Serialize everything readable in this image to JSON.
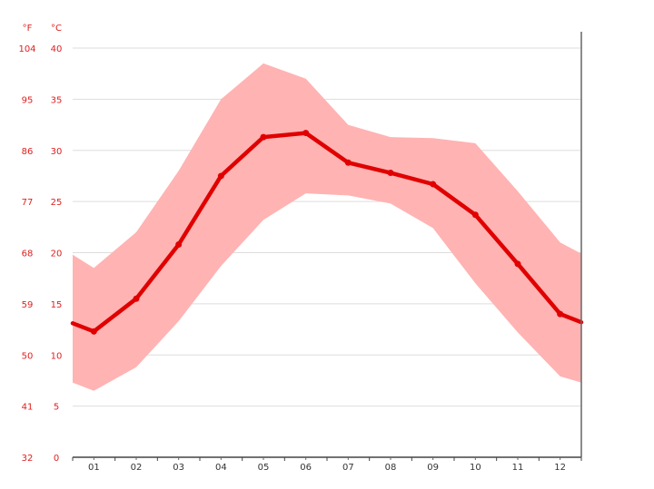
{
  "chart_data": {
    "type": "line",
    "categories": [
      "01",
      "02",
      "03",
      "04",
      "05",
      "06",
      "07",
      "08",
      "09",
      "10",
      "11",
      "12"
    ],
    "series": [
      {
        "values": [
          12.3,
          15.5,
          20.8,
          27.5,
          31.3,
          31.7,
          28.8,
          27.8,
          26.7,
          23.7,
          18.9,
          14.0
        ]
      }
    ],
    "band": {
      "upper": [
        18.5,
        22.0,
        28.0,
        35.0,
        38.5,
        37.0,
        32.5,
        31.3,
        31.2,
        30.7,
        26.0,
        21.0
      ],
      "lower": [
        6.5,
        8.8,
        13.3,
        18.7,
        23.2,
        25.8,
        25.6,
        24.8,
        22.4,
        17.0,
        12.2,
        7.9
      ]
    },
    "edge": {
      "left": {
        "value": 13.1,
        "upper": 19.8,
        "lower": 7.3
      },
      "right": {
        "value": 13.2,
        "upper": 19.9,
        "lower": 7.3
      }
    },
    "ylim": [
      0,
      40
    ],
    "y_ticks_c": [
      "0",
      "5",
      "10",
      "15",
      "20",
      "25",
      "30",
      "35",
      "40"
    ],
    "y_ticks_f": [
      "32",
      "41",
      "50",
      "59",
      "68",
      "77",
      "86",
      "95",
      "104"
    ],
    "y_unit_c": "°C",
    "y_unit_f": "°F",
    "grid": true,
    "colors": {
      "line": "#e00000",
      "band": "#ffb3b3",
      "axis_text": "#e02020",
      "grid": "#dddddd"
    }
  }
}
